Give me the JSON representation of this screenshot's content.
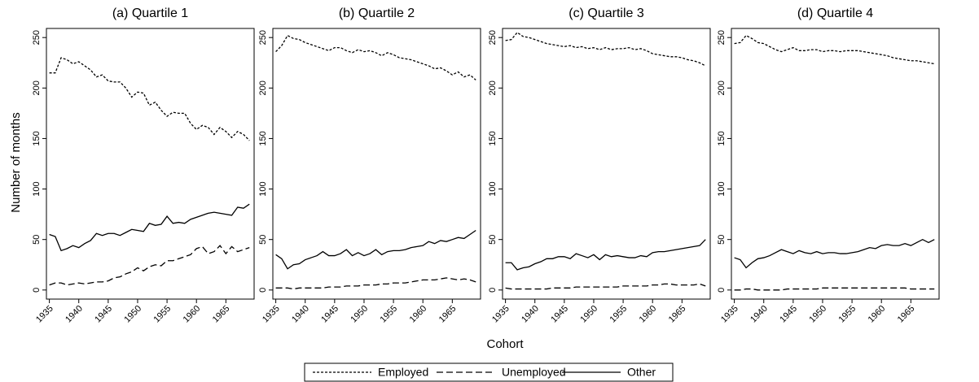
{
  "chart_data": [
    {
      "type": "line",
      "title": "(a) Quartile 1",
      "xlabel": "Cohort",
      "ylabel": "Number of months",
      "x": [
        1935,
        1936,
        1937,
        1938,
        1939,
        1940,
        1941,
        1942,
        1943,
        1944,
        1945,
        1946,
        1947,
        1948,
        1949,
        1950,
        1951,
        1952,
        1953,
        1954,
        1955,
        1956,
        1957,
        1958,
        1959,
        1960,
        1961,
        1962,
        1963,
        1964,
        1965,
        1966,
        1967,
        1968,
        1969
      ],
      "series": [
        {
          "name": "Employed",
          "color": "#000000",
          "dash": "3,2",
          "values": [
            215,
            215,
            230,
            228,
            224,
            226,
            222,
            218,
            211,
            213,
            207,
            206,
            206,
            200,
            191,
            196,
            195,
            183,
            186,
            178,
            172,
            176,
            175,
            175,
            165,
            159,
            163,
            161,
            154,
            161,
            157,
            151,
            157,
            154,
            148
          ]
        },
        {
          "name": "Unemployed",
          "color": "#000000",
          "dash": "8,4",
          "values": [
            5,
            7,
            7,
            5,
            6,
            7,
            6,
            7,
            8,
            8,
            9,
            12,
            13,
            16,
            18,
            22,
            19,
            23,
            25,
            24,
            29,
            29,
            31,
            33,
            35,
            41,
            43,
            36,
            38,
            44,
            36,
            43,
            38,
            40,
            42
          ]
        },
        {
          "name": "Other",
          "color": "#000000",
          "dash": "none",
          "values": [
            55,
            53,
            39,
            41,
            44,
            42,
            46,
            49,
            56,
            54,
            56,
            56,
            54,
            57,
            60,
            59,
            58,
            66,
            64,
            65,
            73,
            66,
            67,
            66,
            70,
            72,
            74,
            76,
            77,
            76,
            75,
            74,
            82,
            81,
            85
          ]
        }
      ],
      "xlim": [
        1934.5,
        1969.8
      ],
      "ylim": [
        -9,
        259
      ],
      "xticks": [
        1935,
        1940,
        1945,
        1950,
        1955,
        1960,
        1965
      ],
      "yticks": [
        0,
        50,
        100,
        150,
        200,
        250
      ]
    },
    {
      "type": "line",
      "title": "(b) Quartile 2",
      "x": [
        1935,
        1936,
        1937,
        1938,
        1939,
        1940,
        1941,
        1942,
        1943,
        1944,
        1945,
        1946,
        1947,
        1948,
        1949,
        1950,
        1951,
        1952,
        1953,
        1954,
        1955,
        1956,
        1957,
        1958,
        1959,
        1960,
        1961,
        1962,
        1963,
        1964,
        1965,
        1966,
        1967,
        1968,
        1969
      ],
      "series": [
        {
          "name": "Employed",
          "color": "#000000",
          "dash": "3,2",
          "values": [
            236,
            242,
            252,
            249,
            248,
            245,
            243,
            241,
            239,
            237,
            240,
            240,
            237,
            235,
            238,
            236,
            237,
            235,
            232,
            235,
            233,
            230,
            229,
            228,
            226,
            224,
            222,
            219,
            220,
            217,
            213,
            216,
            211,
            213,
            208
          ]
        },
        {
          "name": "Unemployed",
          "color": "#000000",
          "dash": "8,4",
          "values": [
            2,
            2,
            2,
            1,
            2,
            2,
            2,
            2,
            2,
            3,
            3,
            3,
            4,
            4,
            4,
            5,
            5,
            5,
            6,
            6,
            7,
            7,
            7,
            8,
            9,
            10,
            10,
            10,
            11,
            12,
            11,
            10,
            11,
            10,
            8
          ]
        },
        {
          "name": "Other",
          "color": "#000000",
          "dash": "none",
          "values": [
            35,
            31,
            21,
            25,
            26,
            30,
            32,
            34,
            38,
            34,
            34,
            36,
            40,
            34,
            37,
            34,
            36,
            40,
            35,
            38,
            39,
            39,
            40,
            42,
            43,
            44,
            48,
            46,
            49,
            48,
            50,
            52,
            51,
            55,
            59
          ]
        }
      ],
      "xlim": [
        1934.5,
        1969.8
      ],
      "ylim": [
        -9,
        259
      ],
      "xticks": [
        1935,
        1940,
        1945,
        1950,
        1955,
        1960,
        1965
      ],
      "yticks": [
        0,
        50,
        100,
        150,
        200,
        250
      ]
    },
    {
      "type": "line",
      "title": "(c) Quartile 3",
      "x": [
        1935,
        1936,
        1937,
        1938,
        1939,
        1940,
        1941,
        1942,
        1943,
        1944,
        1945,
        1946,
        1947,
        1948,
        1949,
        1950,
        1951,
        1952,
        1953,
        1954,
        1955,
        1956,
        1957,
        1958,
        1959,
        1960,
        1961,
        1962,
        1963,
        1964,
        1965,
        1966,
        1967,
        1968,
        1969
      ],
      "series": [
        {
          "name": "Employed",
          "color": "#000000",
          "dash": "3,2",
          "values": [
            247,
            248,
            255,
            251,
            250,
            248,
            246,
            244,
            243,
            242,
            241,
            242,
            240,
            241,
            239,
            240,
            238,
            240,
            238,
            239,
            239,
            240,
            238,
            239,
            237,
            234,
            233,
            232,
            231,
            231,
            230,
            228,
            227,
            225,
            222
          ]
        },
        {
          "name": "Unemployed",
          "color": "#000000",
          "dash": "8,4",
          "values": [
            2,
            1,
            1,
            1,
            1,
            1,
            1,
            1,
            2,
            2,
            2,
            2,
            3,
            3,
            3,
            3,
            3,
            3,
            3,
            3,
            4,
            4,
            4,
            4,
            4,
            5,
            5,
            6,
            6,
            5,
            5,
            5,
            5,
            6,
            4
          ]
        },
        {
          "name": "Other",
          "color": "#000000",
          "dash": "none",
          "values": [
            27,
            27,
            20,
            22,
            23,
            26,
            28,
            31,
            31,
            33,
            33,
            31,
            36,
            34,
            32,
            35,
            30,
            35,
            33,
            34,
            33,
            32,
            32,
            34,
            33,
            37,
            38,
            38,
            39,
            40,
            41,
            42,
            43,
            44,
            50
          ]
        }
      ],
      "xlim": [
        1934.5,
        1969.8
      ],
      "ylim": [
        -9,
        259
      ],
      "xticks": [
        1935,
        1940,
        1945,
        1950,
        1955,
        1960,
        1965
      ],
      "yticks": [
        0,
        50,
        100,
        150,
        200,
        250
      ]
    },
    {
      "type": "line",
      "title": "(d) Quartile 4",
      "x": [
        1935,
        1936,
        1937,
        1938,
        1939,
        1940,
        1941,
        1942,
        1943,
        1944,
        1945,
        1946,
        1947,
        1948,
        1949,
        1950,
        1951,
        1952,
        1953,
        1954,
        1955,
        1956,
        1957,
        1958,
        1959,
        1960,
        1961,
        1962,
        1963,
        1964,
        1965,
        1966,
        1967,
        1968,
        1969
      ],
      "series": [
        {
          "name": "Employed",
          "color": "#000000",
          "dash": "3,2",
          "values": [
            244,
            245,
            252,
            249,
            245,
            244,
            241,
            238,
            236,
            238,
            240,
            237,
            237,
            238,
            238,
            236,
            237,
            237,
            236,
            237,
            237,
            237,
            236,
            235,
            234,
            233,
            232,
            230,
            229,
            228,
            227,
            227,
            226,
            225,
            224
          ]
        },
        {
          "name": "Unemployed",
          "color": "#000000",
          "dash": "8,4",
          "values": [
            0,
            0,
            1,
            1,
            0,
            0,
            0,
            0,
            0,
            1,
            1,
            1,
            1,
            1,
            1,
            2,
            2,
            2,
            2,
            2,
            2,
            2,
            2,
            2,
            2,
            2,
            2,
            2,
            2,
            2,
            1,
            1,
            1,
            1,
            1
          ]
        },
        {
          "name": "Other",
          "color": "#000000",
          "dash": "none",
          "values": [
            32,
            30,
            22,
            27,
            31,
            32,
            34,
            37,
            40,
            38,
            36,
            39,
            37,
            36,
            38,
            36,
            37,
            37,
            36,
            36,
            37,
            38,
            40,
            42,
            41,
            44,
            45,
            44,
            44,
            46,
            44,
            47,
            50,
            47,
            50
          ]
        }
      ],
      "xlim": [
        1934.5,
        1969.8
      ],
      "ylim": [
        -9,
        259
      ],
      "xticks": [
        1935,
        1940,
        1945,
        1950,
        1955,
        1960,
        1965
      ],
      "yticks": [
        0,
        50,
        100,
        150,
        200,
        250
      ]
    }
  ]
}
